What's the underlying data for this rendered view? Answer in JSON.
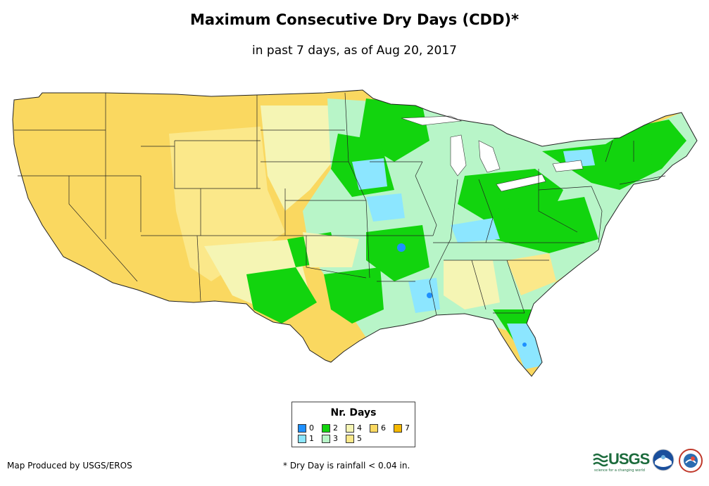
{
  "title": "Maximum Consecutive Dry Days (CDD)*",
  "subtitle": "in past 7 days, as of Aug 20, 2017",
  "legend": {
    "title": "Nr. Days",
    "items": [
      {
        "label": "0",
        "color": "#1e90ff"
      },
      {
        "label": "1",
        "color": "#8ce6ff"
      },
      {
        "label": "2",
        "color": "#12d40e"
      },
      {
        "label": "3",
        "color": "#b8f5c8"
      },
      {
        "label": "4",
        "color": "#f5f5b4"
      },
      {
        "label": "5",
        "color": "#fbe88a"
      },
      {
        "label": "6",
        "color": "#fad860"
      },
      {
        "label": "7",
        "color": "#f5b800"
      }
    ]
  },
  "credit": "Map Produced by USGS/EROS",
  "footnote": "* Dry Day is rainfall < 0.04 in.",
  "logos": {
    "usgs": "USGS",
    "usgs_tagline": "science for a changing world",
    "noaa_icon": "noaa-icon",
    "nws_icon": "nws-icon"
  }
}
